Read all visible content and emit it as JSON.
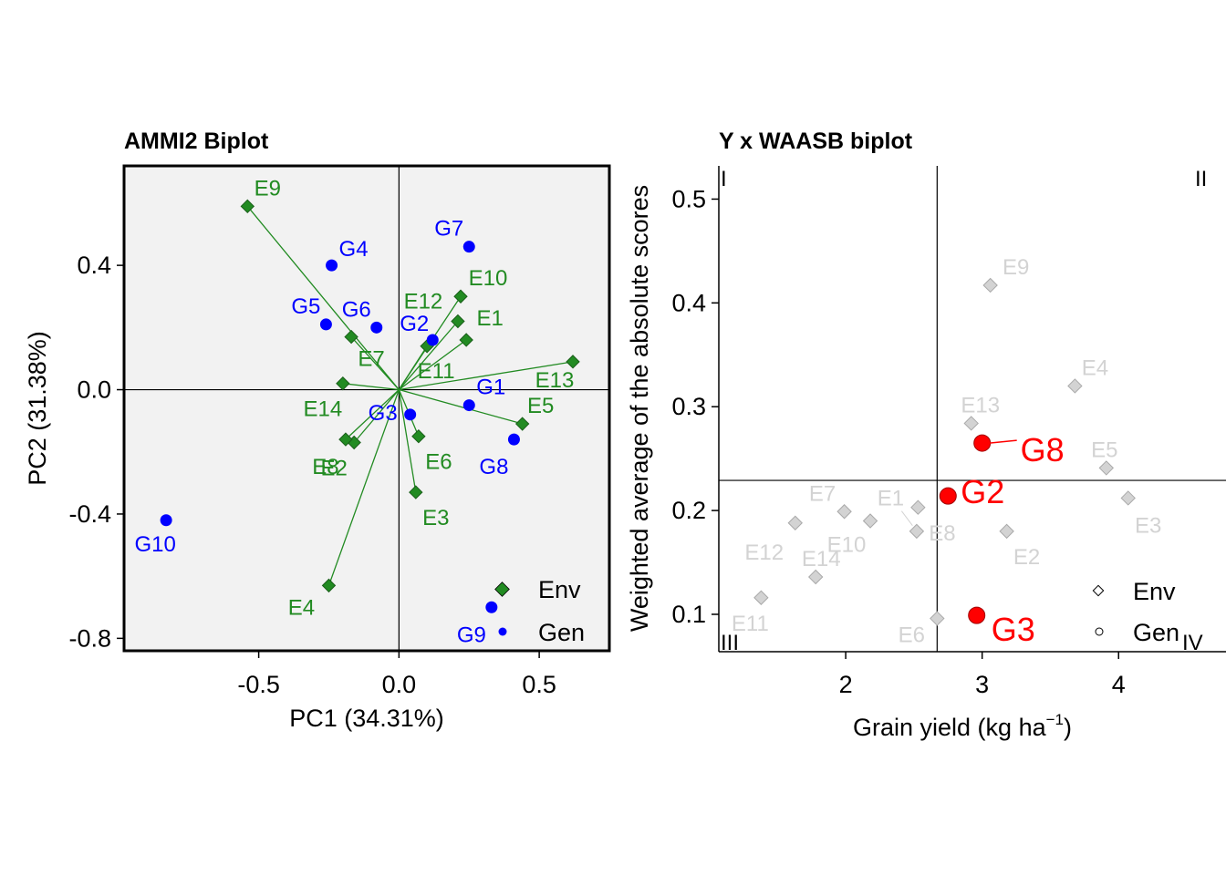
{
  "colors": {
    "env_ammi": "#228b22",
    "gen_ammi": "#0000ff",
    "env_waasb": "#d3d3d3",
    "gen_waasb": "#ff0000",
    "panel_bg": "#f2f2f2"
  },
  "chart_data": [
    {
      "type": "scatter",
      "title": "AMMI2 Biplot",
      "xlabel": "PC1 (34.31%)",
      "ylabel": "PC2 (31.38%)",
      "xlim": [
        -0.98,
        0.75
      ],
      "ylim": [
        -0.84,
        0.72
      ],
      "xticks": [
        -0.5,
        0.0,
        0.5
      ],
      "xtick_labels": [
        "-0.5",
        "0.0",
        "0.5"
      ],
      "yticks": [
        -0.8,
        -0.4,
        0.0,
        0.4
      ],
      "ytick_labels": [
        "-0.8",
        "-0.4",
        "0.0",
        "0.4"
      ],
      "ref_x": 0,
      "ref_y": 0,
      "grid": false,
      "legend_position": "bottom-right",
      "legend": [
        "Env",
        "Gen"
      ],
      "series": [
        {
          "name": "Env",
          "marker": "diamond",
          "vectors_from_origin": true,
          "points": [
            {
              "label": "E1",
              "x": 0.24,
              "y": 0.16
            },
            {
              "label": "E2",
              "x": -0.16,
              "y": -0.17
            },
            {
              "label": "E3",
              "x": 0.06,
              "y": -0.33
            },
            {
              "label": "E4",
              "x": -0.25,
              "y": -0.63
            },
            {
              "label": "E5",
              "x": 0.44,
              "y": -0.11
            },
            {
              "label": "E6",
              "x": 0.07,
              "y": -0.15
            },
            {
              "label": "E7",
              "x": -0.17,
              "y": 0.17
            },
            {
              "label": "E8",
              "x": -0.19,
              "y": -0.16
            },
            {
              "label": "E9",
              "x": -0.54,
              "y": 0.59
            },
            {
              "label": "E10",
              "x": 0.22,
              "y": 0.3
            },
            {
              "label": "E11",
              "x": 0.1,
              "y": 0.14
            },
            {
              "label": "E12",
              "x": 0.21,
              "y": 0.22
            },
            {
              "label": "E13",
              "x": 0.62,
              "y": 0.09
            },
            {
              "label": "E14",
              "x": -0.2,
              "y": 0.02
            }
          ]
        },
        {
          "name": "Gen",
          "marker": "circle",
          "points": [
            {
              "label": "G1",
              "x": 0.25,
              "y": -0.05
            },
            {
              "label": "G2",
              "x": 0.12,
              "y": 0.16
            },
            {
              "label": "G3",
              "x": 0.04,
              "y": -0.08
            },
            {
              "label": "G4",
              "x": -0.24,
              "y": 0.4
            },
            {
              "label": "G5",
              "x": -0.26,
              "y": 0.21
            },
            {
              "label": "G6",
              "x": -0.08,
              "y": 0.2
            },
            {
              "label": "G7",
              "x": 0.25,
              "y": 0.46
            },
            {
              "label": "G8",
              "x": 0.41,
              "y": -0.16
            },
            {
              "label": "G9",
              "x": 0.33,
              "y": -0.7
            },
            {
              "label": "G10",
              "x": -0.83,
              "y": -0.42
            }
          ]
        }
      ]
    },
    {
      "type": "scatter",
      "title": "Y x WAASB biplot",
      "xlabel_main": "Grain yield (kg ha",
      "xlabel_sup": "−1",
      "xlabel_close": ")",
      "ylabel": "Weighted average of the absolute scores",
      "xlim": [
        1.07,
        4.62
      ],
      "ylim": [
        0.064,
        0.532
      ],
      "xticks": [
        2,
        3,
        4
      ],
      "xtick_labels": [
        "2",
        "3",
        "4"
      ],
      "yticks": [
        0.1,
        0.2,
        0.3,
        0.4,
        0.5
      ],
      "ytick_labels": [
        "0.1",
        "0.2",
        "0.3",
        "0.4",
        "0.5"
      ],
      "ref_x": 2.67,
      "ref_y": 0.229,
      "grid": false,
      "quadrants": [
        "I",
        "II",
        "III",
        "IV"
      ],
      "legend_position": "bottom-right",
      "legend": [
        "Env",
        "Gen"
      ],
      "series": [
        {
          "name": "Env",
          "marker": "diamond",
          "points": [
            {
              "label": "E1",
              "x": 2.53,
              "y": 0.203
            },
            {
              "label": "E2",
              "x": 3.18,
              "y": 0.18
            },
            {
              "label": "E3",
              "x": 4.07,
              "y": 0.212
            },
            {
              "label": "E4",
              "x": 3.68,
              "y": 0.32
            },
            {
              "label": "E5",
              "x": 3.91,
              "y": 0.241
            },
            {
              "label": "E6",
              "x": 2.67,
              "y": 0.096
            },
            {
              "label": "E7",
              "x": 1.99,
              "y": 0.199
            },
            {
              "label": "E8",
              "x": 2.52,
              "y": 0.18
            },
            {
              "label": "E9",
              "x": 3.06,
              "y": 0.417
            },
            {
              "label": "E10",
              "x": 2.18,
              "y": 0.19
            },
            {
              "label": "E11",
              "x": 1.38,
              "y": 0.116
            },
            {
              "label": "E12",
              "x": 1.63,
              "y": 0.188
            },
            {
              "label": "E13",
              "x": 2.92,
              "y": 0.284
            },
            {
              "label": "E14",
              "x": 1.78,
              "y": 0.136
            }
          ]
        },
        {
          "name": "Gen",
          "marker": "circle",
          "points": [
            {
              "label": "G2",
              "x": 2.75,
              "y": 0.214
            },
            {
              "label": "G3",
              "x": 2.96,
              "y": 0.099
            },
            {
              "label": "G8",
              "x": 3.0,
              "y": 0.265
            }
          ]
        }
      ]
    }
  ]
}
